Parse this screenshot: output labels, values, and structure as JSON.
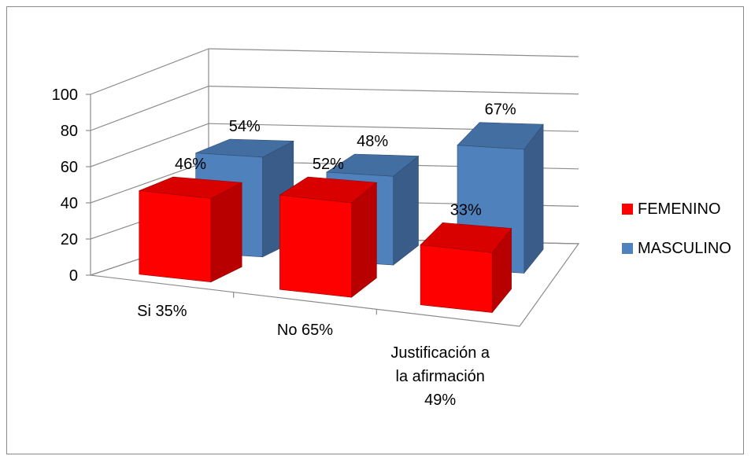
{
  "chart_data": {
    "type": "bar",
    "subtype": "3d-clustered-column",
    "categories": [
      [
        "Si 35%"
      ],
      [
        "No 65%"
      ],
      [
        "Justificación a",
        "la afirmación",
        "49%"
      ]
    ],
    "series": [
      {
        "name": "FEMENINO",
        "color": "#FF0000",
        "values": [
          46,
          52,
          33
        ],
        "labels": [
          "46%",
          "52%",
          "33%"
        ]
      },
      {
        "name": "MASCULINO",
        "color": "#4F81BD",
        "values": [
          54,
          48,
          67
        ],
        "labels": [
          "54%",
          "48%",
          "67%"
        ]
      }
    ],
    "yticks": [
      "0",
      "20",
      "40",
      "60",
      "80",
      "100"
    ],
    "ylim": [
      0,
      100
    ],
    "grid": true,
    "legend_position": "right"
  }
}
